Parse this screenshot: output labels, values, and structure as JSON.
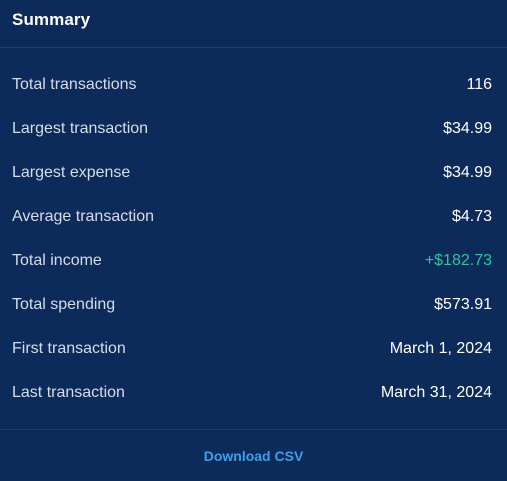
{
  "panel": {
    "title": "Summary",
    "rows": [
      {
        "label": "Total transactions",
        "value": "116"
      },
      {
        "label": "Largest transaction",
        "value": "$34.99"
      },
      {
        "label": "Largest expense",
        "value": "$34.99"
      },
      {
        "label": "Average transaction",
        "value": "$4.73"
      },
      {
        "label": "Total income",
        "value": "+$182.73"
      },
      {
        "label": "Total spending",
        "value": "$573.91"
      },
      {
        "label": "First transaction",
        "value": "March 1, 2024"
      },
      {
        "label": "Last transaction",
        "value": "March 31, 2024"
      }
    ],
    "download_label": "Download CSV"
  },
  "colors": {
    "background": "#0c2a5a",
    "divider": "#1f3f73",
    "label_text": "#d6dde9",
    "value_text": "#ffffff",
    "income_positive": "#2cc5a4",
    "link": "#3f9fe6"
  }
}
